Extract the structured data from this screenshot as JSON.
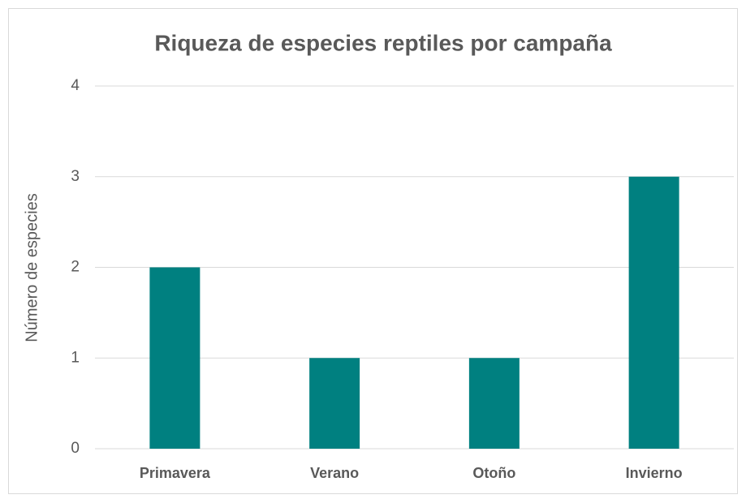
{
  "chart_data": {
    "type": "bar",
    "title": "Riqueza de especies reptiles por campaña",
    "y_label": "Número de especies",
    "categories": [
      "Primavera",
      "Verano",
      "Otoño",
      "Invierno"
    ],
    "values": [
      2,
      1,
      1,
      3
    ],
    "color": "#008080",
    "ylim": [
      0,
      4
    ],
    "yticks": [
      0,
      1,
      2,
      3,
      4
    ],
    "grid": true
  }
}
